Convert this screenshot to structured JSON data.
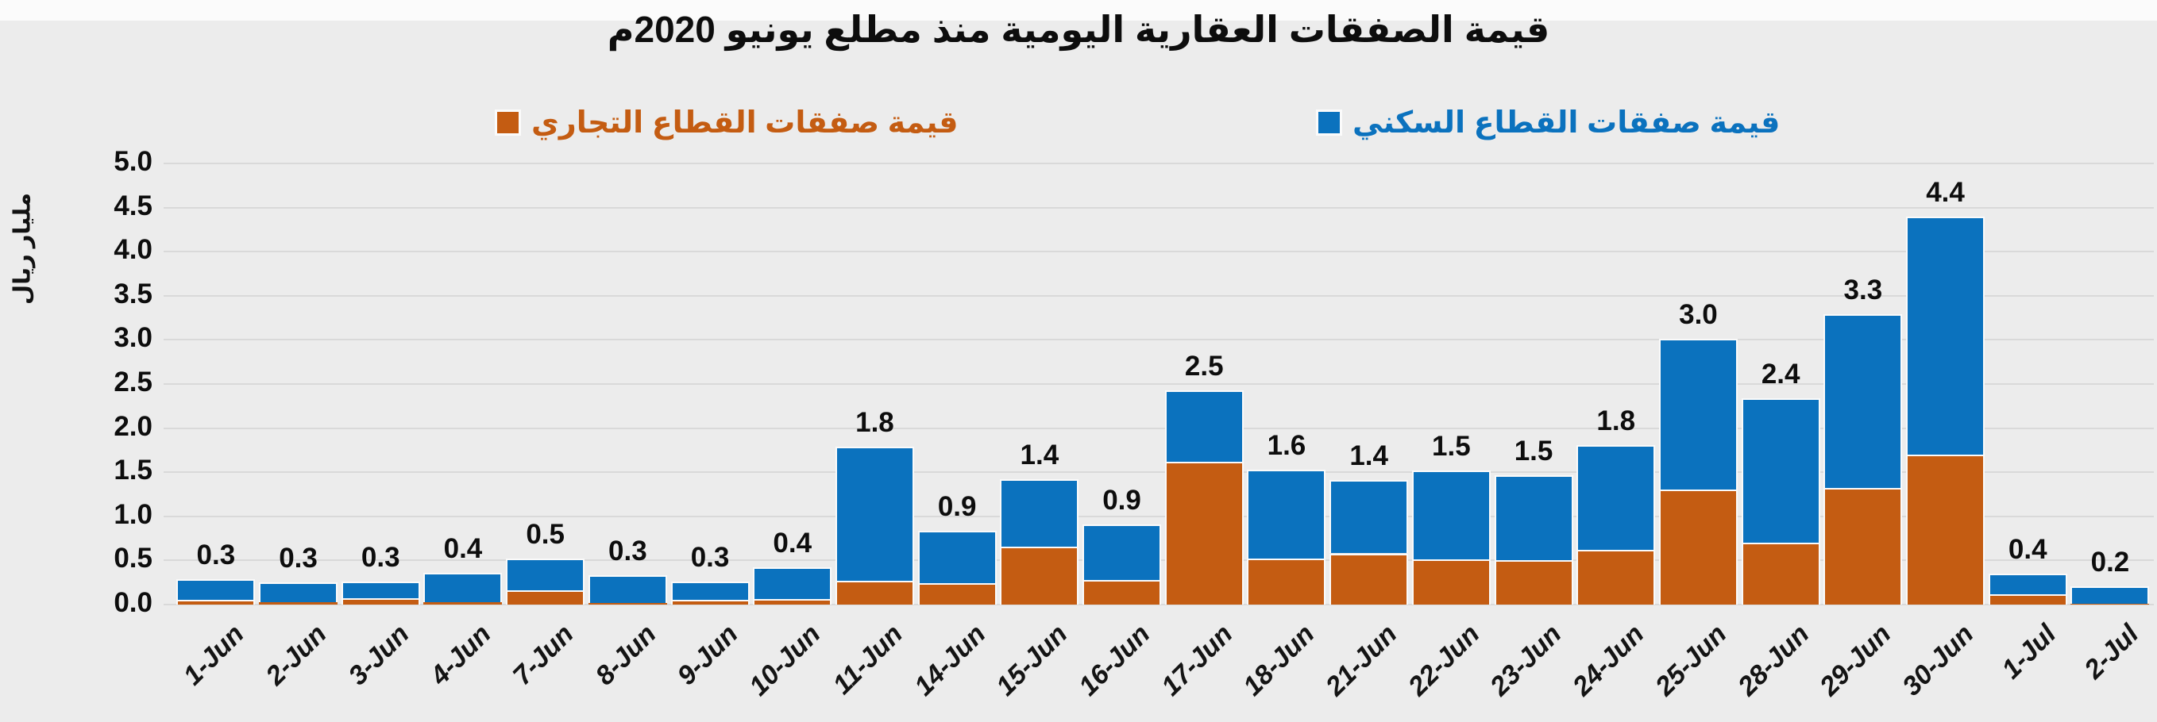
{
  "title": "قيمة الصفقات العقارية اليومية منذ مطلع يونيو 2020م",
  "colors": {
    "residential_blue": "#0B72BE",
    "commercial_orange": "#C45C12",
    "background": "#ECECEC",
    "gridline": "#D9D9D9"
  },
  "legend": {
    "commercial": {
      "label": "قيمة صفقات القطاع التجاري",
      "color": "#C45C12"
    },
    "residential": {
      "label": "قيمة صفقات القطاع السكني",
      "color": "#0B72BE"
    }
  },
  "y_axis": {
    "title": "مليار ريال",
    "tick_labels": [
      "0.0",
      "0.5",
      "1.0",
      "1.5",
      "2.0",
      "2.5",
      "3.0",
      "3.5",
      "4.0",
      "4.5",
      "5.0"
    ]
  },
  "chart_data": {
    "type": "bar",
    "stacked": true,
    "title": "قيمة الصفقات العقارية اليومية منذ مطلع يونيو 2020م",
    "xlabel": "",
    "ylabel": "مليار ريال",
    "ylim": [
      0,
      5
    ],
    "ystep": 0.5,
    "grid": true,
    "legend_position": "top",
    "categories": [
      "1-Jun",
      "2-Jun",
      "3-Jun",
      "4-Jun",
      "7-Jun",
      "8-Jun",
      "9-Jun",
      "10-Jun",
      "11-Jun",
      "14-Jun",
      "15-Jun",
      "16-Jun",
      "17-Jun",
      "18-Jun",
      "21-Jun",
      "22-Jun",
      "23-Jun",
      "24-Jun",
      "25-Jun",
      "28-Jun",
      "29-Jun",
      "30-Jun",
      "1-Jul",
      "2-Jul"
    ],
    "series": [
      {
        "name": "قيمة صفقات القطاع السكني",
        "color": "#0B72BE",
        "values": [
          0.24,
          0.22,
          0.19,
          0.33,
          0.36,
          0.31,
          0.21,
          0.36,
          1.52,
          0.6,
          0.76,
          0.63,
          0.81,
          1.01,
          0.83,
          1.01,
          0.97,
          1.19,
          1.71,
          1.64,
          1.97,
          2.7,
          0.23,
          0.2
        ]
      },
      {
        "name": "قيمة صفقات القطاع التجاري",
        "color": "#C45C12",
        "values": [
          0.05,
          0.03,
          0.07,
          0.03,
          0.16,
          0.02,
          0.05,
          0.06,
          0.27,
          0.24,
          0.66,
          0.28,
          1.62,
          0.52,
          0.58,
          0.51,
          0.5,
          0.62,
          1.3,
          0.7,
          1.32,
          1.7,
          0.12,
          0.01
        ]
      }
    ],
    "total_labels": [
      "0.3",
      "0.3",
      "0.3",
      "0.4",
      "0.5",
      "0.3",
      "0.3",
      "0.4",
      "1.8",
      "0.9",
      "1.4",
      "0.9",
      "2.5",
      "1.6",
      "1.4",
      "1.5",
      "1.5",
      "1.8",
      "3.0",
      "2.4",
      "3.3",
      "4.4",
      "0.4",
      "0.2"
    ]
  }
}
